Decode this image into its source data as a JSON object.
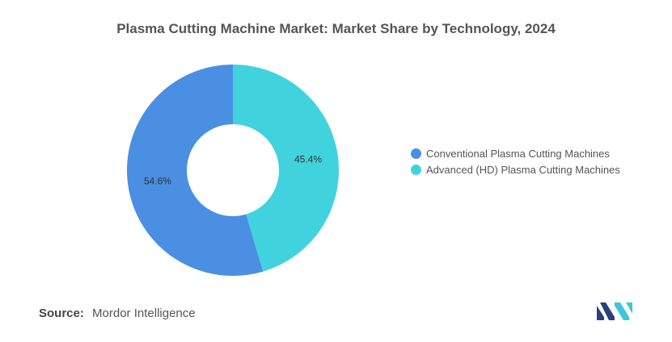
{
  "chart_data": {
    "type": "pie",
    "title": "Plasma Cutting Machine Market: Market Share by Technology, 2024",
    "series": [
      {
        "name": "Conventional Plasma Cutting Machines",
        "value": 54.6,
        "label": "54.6%",
        "color": "#4a8fe2"
      },
      {
        "name": "Advanced (HD) Plasma Cutting Machines",
        "value": 45.4,
        "label": "45.4%",
        "color": "#41d3dd"
      }
    ],
    "legend_position": "right",
    "donut": true
  },
  "source": {
    "label": "Source:",
    "text": "Mordor Intelligence"
  },
  "logo": {
    "icon": "mordor-intelligence-logo",
    "colors": [
      "#2b3f7a",
      "#3fc7d6"
    ]
  }
}
